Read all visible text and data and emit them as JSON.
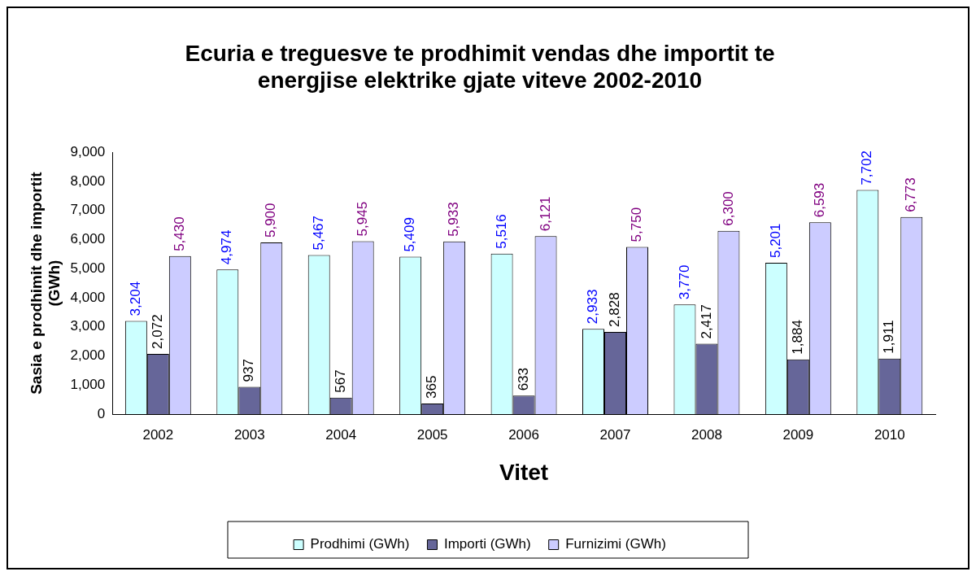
{
  "chart_data": {
    "type": "bar",
    "title": "Ecuria e treguesve te prodhimit vendas dhe importit te\nenergjise elektrike gjate viteve 2002-2010",
    "xlabel": "Vitet",
    "ylabel": "Sasia e prodhimit dhe importit\n(GWh)",
    "categories": [
      "2002",
      "2003",
      "2004",
      "2005",
      "2006",
      "2007",
      "2008",
      "2009",
      "2010"
    ],
    "series": [
      {
        "name": "Prodhimi (GWh)",
        "color": "#ccffff",
        "values": [
          3204,
          4974,
          5467,
          5409,
          5516,
          2933,
          3770,
          5201,
          7702
        ],
        "value_labels": [
          "3,204",
          "4,974",
          "5,467",
          "5,409",
          "5,516",
          "2,933",
          "3,770",
          "5,201",
          "7,702"
        ]
      },
      {
        "name": "Importi (GWh)",
        "color": "#666699",
        "values": [
          2072,
          937,
          567,
          365,
          633,
          2828,
          2417,
          1884,
          1911
        ],
        "value_labels": [
          "2,072",
          "937",
          "567",
          "365",
          "633",
          "2,828",
          "2,417",
          "1,884",
          "1,911"
        ]
      },
      {
        "name": "Furnizimi (GWh)",
        "color": "#ccccff",
        "values": [
          5430,
          5900,
          5945,
          5933,
          6121,
          5750,
          6300,
          6593,
          6773
        ],
        "value_labels": [
          "5,430",
          "5,900",
          "5,945",
          "5,933",
          "6,121",
          "5,750",
          "6,300",
          "6,593",
          "6,773"
        ]
      }
    ],
    "ylim": [
      0,
      9000
    ],
    "yticks": [
      0,
      {
        "value": 1000,
        "label": "1,000"
      },
      {
        "value": 2000,
        "label": "2,000"
      },
      {
        "value": 3000,
        "label": "3,000"
      },
      {
        "value": 4000,
        "label": "4,000"
      },
      {
        "value": 5000,
        "label": "5,000"
      },
      {
        "value": 6000,
        "label": "6,000"
      },
      {
        "value": 7000,
        "label": "7,000"
      },
      {
        "value": 8000,
        "label": "8,000"
      },
      {
        "value": 9000,
        "label": "9,000"
      }
    ],
    "grid": false,
    "legend": "bottom"
  }
}
